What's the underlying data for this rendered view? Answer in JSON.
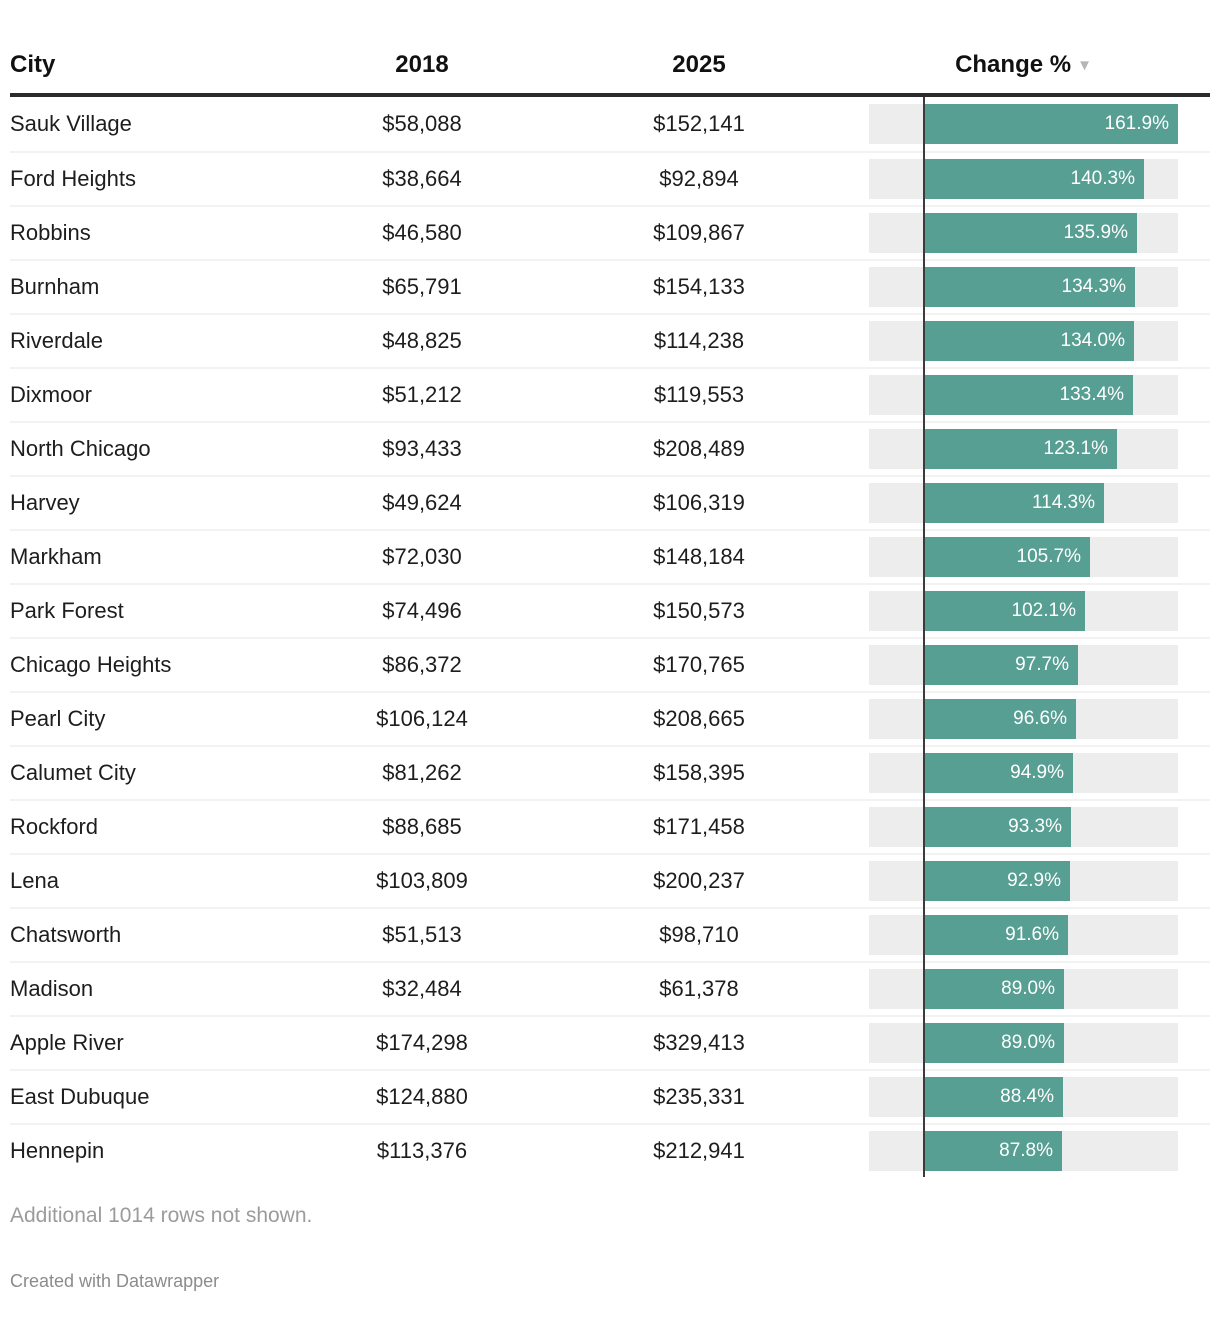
{
  "table": {
    "columns": {
      "city": "City",
      "y2018": "2018",
      "y2025": "2025",
      "change": "Change %"
    },
    "sort_indicator": "▼",
    "bar_axis_max": 161.9,
    "rows": [
      {
        "city": "Sauk Village",
        "y2018": "$58,088",
        "y2025": "$152,141",
        "change": 161.9,
        "change_label": "161.9%"
      },
      {
        "city": "Ford Heights",
        "y2018": "$38,664",
        "y2025": "$92,894",
        "change": 140.3,
        "change_label": "140.3%"
      },
      {
        "city": "Robbins",
        "y2018": "$46,580",
        "y2025": "$109,867",
        "change": 135.9,
        "change_label": "135.9%"
      },
      {
        "city": "Burnham",
        "y2018": "$65,791",
        "y2025": "$154,133",
        "change": 134.3,
        "change_label": "134.3%"
      },
      {
        "city": "Riverdale",
        "y2018": "$48,825",
        "y2025": "$114,238",
        "change": 134.0,
        "change_label": "134.0%"
      },
      {
        "city": "Dixmoor",
        "y2018": "$51,212",
        "y2025": "$119,553",
        "change": 133.4,
        "change_label": "133.4%"
      },
      {
        "city": "North Chicago",
        "y2018": "$93,433",
        "y2025": "$208,489",
        "change": 123.1,
        "change_label": "123.1%"
      },
      {
        "city": "Harvey",
        "y2018": "$49,624",
        "y2025": "$106,319",
        "change": 114.3,
        "change_label": "114.3%"
      },
      {
        "city": "Markham",
        "y2018": "$72,030",
        "y2025": "$148,184",
        "change": 105.7,
        "change_label": "105.7%"
      },
      {
        "city": "Park Forest",
        "y2018": "$74,496",
        "y2025": "$150,573",
        "change": 102.1,
        "change_label": "102.1%"
      },
      {
        "city": "Chicago Heights",
        "y2018": "$86,372",
        "y2025": "$170,765",
        "change": 97.7,
        "change_label": "97.7%"
      },
      {
        "city": "Pearl City",
        "y2018": "$106,124",
        "y2025": "$208,665",
        "change": 96.6,
        "change_label": "96.6%"
      },
      {
        "city": "Calumet City",
        "y2018": "$81,262",
        "y2025": "$158,395",
        "change": 94.9,
        "change_label": "94.9%"
      },
      {
        "city": "Rockford",
        "y2018": "$88,685",
        "y2025": "$171,458",
        "change": 93.3,
        "change_label": "93.3%"
      },
      {
        "city": "Lena",
        "y2018": "$103,809",
        "y2025": "$200,237",
        "change": 92.9,
        "change_label": "92.9%"
      },
      {
        "city": "Chatsworth",
        "y2018": "$51,513",
        "y2025": "$98,710",
        "change": 91.6,
        "change_label": "91.6%"
      },
      {
        "city": "Madison",
        "y2018": "$32,484",
        "y2025": "$61,378",
        "change": 89.0,
        "change_label": "89.0%"
      },
      {
        "city": "Apple River",
        "y2018": "$174,298",
        "y2025": "$329,413",
        "change": 89.0,
        "change_label": "89.0%"
      },
      {
        "city": "East Dubuque",
        "y2018": "$124,880",
        "y2025": "$235,331",
        "change": 88.4,
        "change_label": "88.4%"
      },
      {
        "city": "Hennepin",
        "y2018": "$113,376",
        "y2025": "$212,941",
        "change": 87.8,
        "change_label": "87.8%"
      }
    ]
  },
  "chart_data": {
    "type": "table",
    "title": "",
    "columns": [
      "City",
      "2018",
      "2025",
      "Change %"
    ],
    "rows": [
      [
        "Sauk Village",
        58088,
        152141,
        161.9
      ],
      [
        "Ford Heights",
        38664,
        92894,
        140.3
      ],
      [
        "Robbins",
        46580,
        109867,
        135.9
      ],
      [
        "Burnham",
        65791,
        154133,
        134.3
      ],
      [
        "Riverdale",
        48825,
        114238,
        134.0
      ],
      [
        "Dixmoor",
        51212,
        119553,
        133.4
      ],
      [
        "North Chicago",
        93433,
        208489,
        123.1
      ],
      [
        "Harvey",
        49624,
        106319,
        114.3
      ],
      [
        "Markham",
        72030,
        148184,
        105.7
      ],
      [
        "Park Forest",
        74496,
        150573,
        102.1
      ],
      [
        "Chicago Heights",
        86372,
        170765,
        97.7
      ],
      [
        "Pearl City",
        106124,
        208665,
        96.6
      ],
      [
        "Calumet City",
        81262,
        158395,
        94.9
      ],
      [
        "Rockford",
        88685,
        171458,
        93.3
      ],
      [
        "Lena",
        103809,
        200237,
        92.9
      ],
      [
        "Chatsworth",
        51513,
        98710,
        91.6
      ],
      [
        "Madison",
        32484,
        61378,
        89.0
      ],
      [
        "Apple River",
        174298,
        329413,
        89.0
      ],
      [
        "East Dubuque",
        124880,
        235331,
        88.4
      ],
      [
        "Hennepin",
        113376,
        212941,
        87.8
      ]
    ],
    "bar_column": "Change %",
    "sort": {
      "column": "Change %",
      "direction": "desc"
    },
    "bar_axis": {
      "zero_at_fraction": 0.175,
      "max": 161.9
    },
    "legend_position": "none",
    "grid": false
  },
  "footer": {
    "note": "Additional 1014 rows not shown.",
    "credit": "Created with Datawrapper"
  },
  "colors": {
    "bar": "#579e93",
    "track": "#ededed",
    "axis_line": "#3b3b3b",
    "header_rule": "#2b2b2b",
    "separator": "#f2f2f2",
    "bar_label": "#ffffff",
    "muted_text": "#9b9b9b"
  }
}
